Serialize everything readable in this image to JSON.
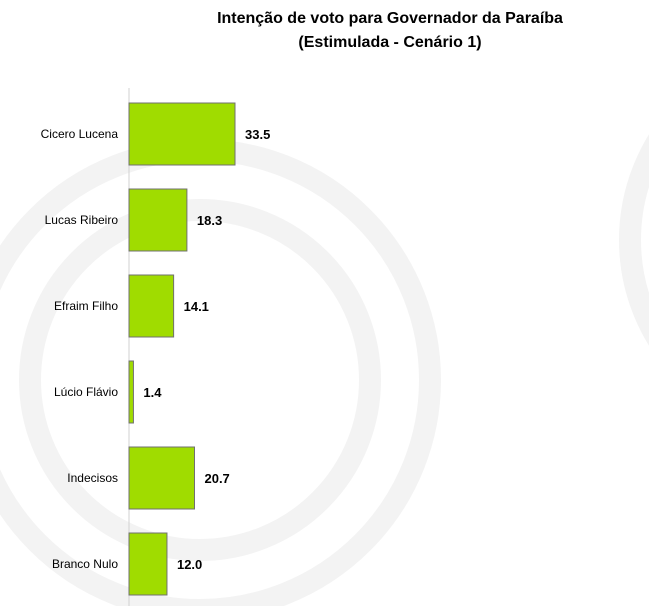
{
  "chart_data": {
    "type": "bar",
    "orientation": "horizontal",
    "title": "Intenção de voto para Governador da Paraíba",
    "subtitle": "(Estimulada - Cenário 1)",
    "categories": [
      "Cicero Lucena",
      "Lucas Ribeiro",
      "Efraim Filho",
      "Lúcio Flávio",
      "Indecisos",
      "Branco Nulo"
    ],
    "values": [
      33.5,
      18.3,
      14.1,
      1.4,
      20.7,
      12.0
    ],
    "value_labels": [
      "33.5",
      "18.3",
      "14.1",
      "1.4",
      "20.7",
      "12.0"
    ],
    "xlabel": "",
    "ylabel": "",
    "grid": false,
    "colors": {
      "bar": "#a0dc00",
      "bar_border": "#707070",
      "axis": "#d0d0d0",
      "watermark": "#f3f3f3"
    }
  }
}
